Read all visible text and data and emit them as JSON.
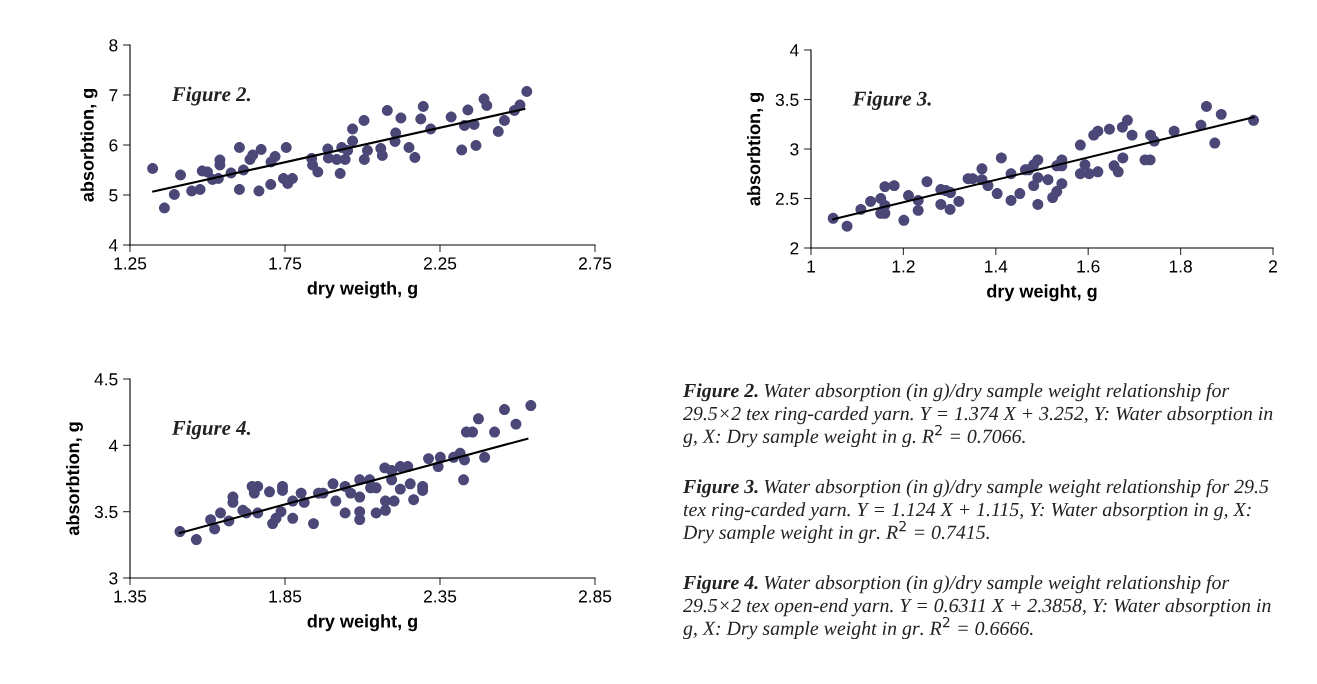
{
  "chart_data": [
    {
      "type": "scatter",
      "xlabel": "dry weigth, g",
      "ylabel": "absorbtion, g",
      "xlim": [
        1.25,
        2.75
      ],
      "ylim": [
        4,
        8
      ],
      "xticks": [
        1.25,
        1.75,
        2.25,
        2.75
      ],
      "yticks": [
        4,
        5,
        6,
        7,
        8
      ],
      "annotations": [
        "Figure 2.",
        "Figure 2.",
        "Water absorption (in g)/dry sample weight relationship for 29.5×2 tex ring-carded yarn. Y = 1.374 X + 3.252, Y: Water absorption in g, X: Dry sample weight in g. R$^{2}$ = 0.7066."
      ],
      "series": [
        {
          "marker": "circle",
          "color": "#4b4878",
          "x": [
            1.323,
            1.361,
            1.393,
            1.413,
            1.449,
            1.476,
            1.483,
            1.5,
            1.516,
            1.535,
            1.54,
            1.54,
            1.576,
            1.603,
            1.603,
            1.616,
            1.637,
            1.646,
            1.673,
            1.666,
            1.704,
            1.705,
            1.718,
            1.754,
            1.745,
            1.759,
            1.774,
            1.836,
            1.839,
            1.856,
            1.888,
            1.89,
            1.917,
            1.928,
            1.933,
            1.944,
            1.952,
            1.968,
            1.968,
            2.005,
            2.006,
            2.016,
            2.059,
            2.064,
            2.08,
            2.105,
            2.107,
            2.124,
            2.15,
            2.169,
            2.188,
            2.196,
            2.22,
            2.286,
            2.32,
            2.329,
            2.34,
            2.36,
            2.366,
            2.392,
            2.401,
            2.438,
            2.458,
            2.49,
            2.508,
            2.53
          ],
          "values": [
            5.53,
            4.74,
            5.01,
            5.4,
            5.08,
            5.11,
            5.48,
            5.46,
            5.31,
            5.33,
            5.7,
            5.6,
            5.44,
            5.95,
            5.11,
            5.5,
            5.71,
            5.8,
            5.91,
            5.08,
            5.21,
            5.66,
            5.77,
            5.95,
            5.33,
            5.23,
            5.33,
            5.73,
            5.6,
            5.46,
            5.92,
            5.74,
            5.71,
            5.43,
            5.95,
            5.71,
            5.89,
            6.08,
            6.32,
            6.49,
            5.71,
            5.89,
            5.93,
            5.79,
            6.69,
            6.07,
            6.24,
            6.54,
            5.95,
            5.75,
            6.52,
            6.77,
            6.32,
            6.56,
            5.9,
            6.39,
            6.7,
            6.41,
            5.99,
            6.92,
            6.79,
            6.27,
            6.49,
            6.69,
            6.8,
            7.07
          ]
        },
        {
          "type": "line",
          "color": "#000000",
          "x": [
            1.325,
            2.522
          ],
          "values": [
            5.07,
            6.72
          ]
        }
      ]
    },
    {
      "type": "scatter",
      "xlabel": "dry weight, g",
      "ylabel": "absorbtion, g",
      "xlim": [
        1,
        2
      ],
      "ylim": [
        2,
        4
      ],
      "xticks": [
        1,
        1.2,
        1.4,
        1.6,
        1.8,
        2
      ],
      "yticks": [
        2,
        2.5,
        3,
        3.5,
        4
      ],
      "annotations": [
        "Figure 3.",
        "Figure 3.",
        "Water absorption (in g)/dry sample weight relationship for 29.5 tex ring-carded yarn. Y = 1.124 X + 1.115, Y: Water absorption in g, X: Dry sample weight in gr. R$^{2}$ = 0.7415."
      ],
      "series": [
        {
          "marker": "circle",
          "color": "#4b4878",
          "x": [
            1.048,
            1.078,
            1.108,
            1.129,
            1.151,
            1.16,
            1.18,
            1.151,
            1.16,
            1.16,
            1.201,
            1.211,
            1.232,
            1.232,
            1.251,
            1.281,
            1.281,
            1.292,
            1.302,
            1.301,
            1.32,
            1.34,
            1.35,
            1.37,
            1.37,
            1.383,
            1.403,
            1.412,
            1.433,
            1.433,
            1.452,
            1.464,
            1.471,
            1.482,
            1.491,
            1.491,
            1.482,
            1.491,
            1.513,
            1.523,
            1.532,
            1.543,
            1.543,
            1.532,
            1.543,
            1.583,
            1.583,
            1.593,
            1.602,
            1.612,
            1.621,
            1.621,
            1.646,
            1.656,
            1.665,
            1.674,
            1.675,
            1.685,
            1.695,
            1.723,
            1.734,
            1.735,
            1.743,
            1.786,
            1.844,
            1.856,
            1.874,
            1.888,
            1.958
          ],
          "values": [
            2.3,
            2.22,
            2.39,
            2.47,
            2.5,
            2.62,
            2.63,
            2.35,
            2.35,
            2.43,
            2.28,
            2.53,
            2.48,
            2.38,
            2.67,
            2.59,
            2.44,
            2.58,
            2.56,
            2.39,
            2.47,
            2.7,
            2.7,
            2.8,
            2.69,
            2.63,
            2.55,
            2.91,
            2.75,
            2.48,
            2.55,
            2.79,
            2.79,
            2.84,
            2.89,
            2.71,
            2.63,
            2.44,
            2.69,
            2.51,
            2.57,
            2.89,
            2.83,
            2.83,
            2.65,
            3.04,
            2.75,
            2.84,
            2.75,
            3.14,
            3.18,
            2.77,
            3.2,
            2.83,
            2.77,
            3.22,
            2.91,
            3.29,
            3.14,
            2.89,
            2.89,
            3.14,
            3.08,
            3.18,
            3.24,
            3.43,
            3.06,
            3.35,
            3.29
          ]
        },
        {
          "type": "line",
          "color": "#000000",
          "x": [
            1.048,
            1.958
          ],
          "values": [
            2.29,
            3.32
          ]
        }
      ]
    },
    {
      "type": "scatter",
      "xlabel": "dry weight, g",
      "ylabel": "absorbtion, g",
      "xlim": [
        1.35,
        2.85
      ],
      "ylim": [
        3,
        4.5
      ],
      "xticks": [
        1.35,
        1.85,
        2.35,
        2.85
      ],
      "yticks": [
        3,
        3.5,
        4,
        4.5
      ],
      "annotations": [
        "Figure 4.",
        "Figure 4.",
        "Water absorption (in g)/dry sample weight relationship for 29.5×2 tex open-end yarn. Y = 0.6311 X + 2.3858, Y: Water absorption in g, X: Dry sample weight in gr. R$^{2}$ = 0.6666."
      ],
      "series": [
        {
          "marker": "circle",
          "color": "#4b4878",
          "x": [
            1.511,
            1.564,
            1.61,
            1.623,
            1.642,
            1.669,
            1.682,
            1.682,
            1.714,
            1.725,
            1.744,
            1.762,
            1.751,
            1.762,
            1.8,
            1.81,
            1.821,
            1.837,
            1.842,
            1.842,
            1.875,
            1.875,
            1.902,
            1.912,
            1.942,
            1.958,
            1.973,
            2.005,
            2.014,
            2.044,
            2.044,
            2.062,
            2.091,
            2.091,
            2.091,
            2.091,
            2.123,
            2.126,
            2.144,
            2.144,
            2.172,
            2.174,
            2.174,
            2.194,
            2.194,
            2.202,
            2.222,
            2.222,
            2.246,
            2.254,
            2.265,
            2.294,
            2.294,
            2.313,
            2.344,
            2.351,
            2.394,
            2.415,
            2.426,
            2.429,
            2.435,
            2.455,
            2.474,
            2.494,
            2.526,
            2.558,
            2.595,
            2.643
          ],
          "values": [
            3.35,
            3.29,
            3.44,
            3.37,
            3.49,
            3.43,
            3.61,
            3.57,
            3.51,
            3.49,
            3.69,
            3.69,
            3.64,
            3.49,
            3.65,
            3.41,
            3.45,
            3.5,
            3.69,
            3.66,
            3.58,
            3.45,
            3.64,
            3.57,
            3.41,
            3.64,
            3.64,
            3.71,
            3.58,
            3.69,
            3.49,
            3.64,
            3.74,
            3.61,
            3.5,
            3.44,
            3.74,
            3.68,
            3.68,
            3.49,
            3.83,
            3.58,
            3.51,
            3.81,
            3.74,
            3.58,
            3.84,
            3.67,
            3.84,
            3.71,
            3.59,
            3.69,
            3.66,
            3.9,
            3.84,
            3.91,
            3.91,
            3.94,
            3.74,
            3.89,
            4.1,
            4.1,
            4.2,
            3.91,
            4.1,
            4.27,
            4.16,
            4.3
          ]
        },
        {
          "type": "line",
          "color": "#000000",
          "x": [
            1.511,
            2.632
          ],
          "values": [
            3.34,
            4.05
          ]
        }
      ]
    }
  ]
}
